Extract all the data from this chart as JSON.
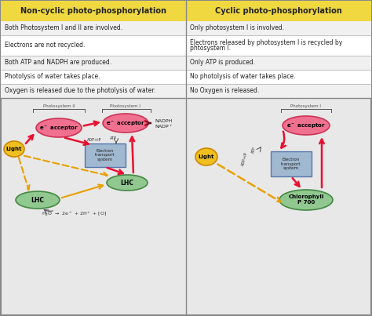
{
  "title_left": "Non-cyclic photo-phosphorylation",
  "title_right": "Cyclic photo-phosphorylation",
  "title_bg": "#f0d840",
  "table_rows": [
    [
      "Both Photosystem I and II are involved.",
      "Only photosystem I is involved."
    ],
    [
      "Electrons are not recycled.",
      "Electrons released by photosystem I is recycled by\nphtosystem I."
    ],
    [
      "Both ATP and NADPH are produced.",
      "Only ATP is produced."
    ],
    [
      "Photolysis of water takes place.",
      "No photolysis of water takes place."
    ],
    [
      "Oxygen is released due to the photolysis of water.",
      "No Oxygen is released."
    ]
  ],
  "row_colors": [
    "#f0f0f0",
    "#ffffff",
    "#f0f0f0",
    "#ffffff",
    "#f0f0f0"
  ],
  "pink_color": "#f07090",
  "green_color": "#90c890",
  "yellow_color": "#f0c020",
  "blue_gray_color": "#a0b8d0",
  "red_arrow": "#e81030",
  "orange_arrow": "#e8a000",
  "text_dark": "#333333",
  "bg_color": "#e8e8e8"
}
